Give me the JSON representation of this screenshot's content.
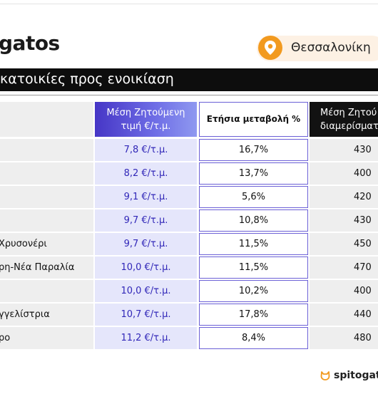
{
  "brand": {
    "text": "gatos"
  },
  "city": {
    "name": "Θεσσαλονίκη",
    "pin_color": "#f29a1f"
  },
  "title": {
    "text": "κατοικίες προς ενοικίαση"
  },
  "headers": {
    "price": [
      "Μέση Ζητούμενη",
      "τιμή €/τ.μ."
    ],
    "change": "Ετήσια μεταβολή %",
    "avg": [
      "Μέση Ζητού",
      "διαμερίσματ"
    ]
  },
  "rows": [
    {
      "area": "",
      "price": "7,8 €/τ.μ.",
      "change": "16,7%",
      "avg": "430"
    },
    {
      "area": "",
      "price": "8,2 €/τ.μ.",
      "change": "13,7%",
      "avg": "400"
    },
    {
      "area": "",
      "price": "9,1 €/τ.μ.",
      "change": "5,6%",
      "avg": "420"
    },
    {
      "area": "",
      "price": "9,7 €/τ.μ.",
      "change": "10,8%",
      "avg": "430"
    },
    {
      "area": "Χρυσονέρι",
      "price": "9,7 €/τ.μ.",
      "change": "11,5%",
      "avg": "450"
    },
    {
      "area": "ρη-Νέα Παραλία",
      "price": "10,0 €/τ.μ.",
      "change": "11,5%",
      "avg": "470"
    },
    {
      "area": "",
      "price": "10,0 €/τ.μ.",
      "change": "10,2%",
      "avg": "400"
    },
    {
      "area": "γγελίστρια",
      "price": "10,7 €/τ.μ.",
      "change": "17,8%",
      "avg": "440"
    },
    {
      "area": "ρο",
      "price": "11,2 €/τ.μ.",
      "change": "8,4%",
      "avg": "480"
    }
  ],
  "footer": {
    "logo_text": "spitogat",
    "icon": "cat-icon"
  },
  "colors": {
    "accent": "#4636c6",
    "price_text": "#3127b8",
    "price_bg": "#e5e6fb"
  }
}
